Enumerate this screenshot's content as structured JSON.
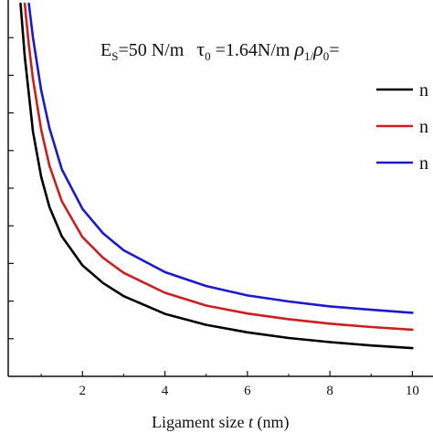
{
  "chart_data": {
    "type": "line",
    "xlabel_pre": "Ligament size ",
    "xlabel_var": "t",
    "xlabel_post": " (nm)",
    "x_ticks": [
      2,
      4,
      6,
      8,
      10
    ],
    "xlim": [
      0.2,
      10.5
    ],
    "ylim": [
      0,
      1
    ],
    "grid": false,
    "legend_placement": "right",
    "annotation": {
      "Es": "E",
      "Es_sub": "S",
      "Es_val": "=50 N/m",
      "tau": "τ",
      "tau_sub": "0",
      "tau_val": " =1.64N/m ",
      "rho1": "ρ",
      "rho1_sub": "1",
      "slash": "/",
      "rho0": "ρ",
      "rho0_sub": "0",
      "rho_val": "="
    },
    "series": [
      {
        "legend_label": "n",
        "color": "#000000",
        "x": [
          0.5,
          0.6,
          0.8,
          1.0,
          1.2,
          1.5,
          2.0,
          2.5,
          3.0,
          4.0,
          5.0,
          6.0,
          7.0,
          8.0,
          9.0,
          10.0
        ],
        "y": [
          0.99,
          0.85,
          0.65,
          0.53,
          0.45,
          0.372,
          0.295,
          0.248,
          0.213,
          0.166,
          0.137,
          0.117,
          0.102,
          0.091,
          0.082,
          0.075
        ]
      },
      {
        "legend_label": "n",
        "color": "#cc1f1f",
        "x": [
          0.6,
          0.7,
          0.8,
          1.0,
          1.2,
          1.5,
          2.0,
          2.5,
          3.0,
          4.0,
          5.0,
          6.0,
          7.0,
          8.0,
          9.0,
          10.0
        ],
        "y": [
          0.99,
          0.88,
          0.79,
          0.655,
          0.56,
          0.465,
          0.37,
          0.315,
          0.275,
          0.222,
          0.188,
          0.167,
          0.152,
          0.14,
          0.131,
          0.124
        ]
      },
      {
        "legend_label": "n",
        "color": "#1a1acc",
        "x": [
          0.7,
          0.8,
          1.0,
          1.2,
          1.5,
          2.0,
          2.5,
          3.0,
          4.0,
          5.0,
          6.0,
          7.0,
          8.0,
          9.0,
          10.0
        ],
        "y": [
          0.99,
          0.9,
          0.76,
          0.66,
          0.55,
          0.445,
          0.38,
          0.335,
          0.277,
          0.24,
          0.215,
          0.199,
          0.186,
          0.177,
          0.169
        ]
      }
    ]
  }
}
